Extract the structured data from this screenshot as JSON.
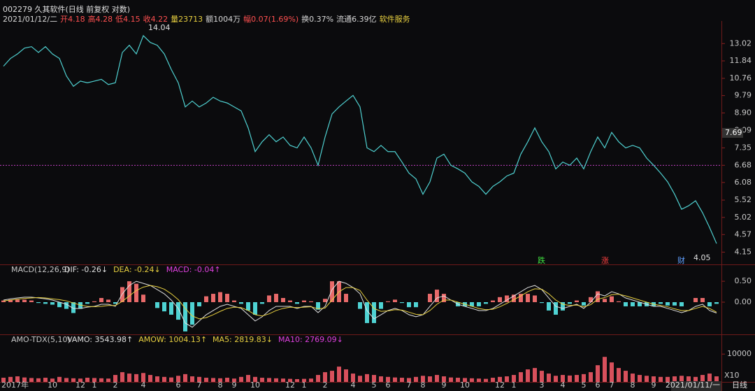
{
  "header": {
    "title": "002279 久其软件(日线 前复权 对数)",
    "period": "日线",
    "quote": [
      {
        "text": "2021/01/12/二",
        "color": "#d8d8d8"
      },
      {
        "text": "开4.18",
        "color": "#ff5050"
      },
      {
        "text": "高4.28",
        "color": "#ff5050"
      },
      {
        "text": "低4.15",
        "color": "#ff5050"
      },
      {
        "text": "收4.22",
        "color": "#ff5050"
      },
      {
        "text": "量23713",
        "color": "#e8d040"
      },
      {
        "text": "额1004万",
        "color": "#d8d8d8"
      },
      {
        "text": "幅0.07(1.69%)",
        "color": "#ff5050"
      },
      {
        "text": "换0.37%",
        "color": "#d8d8d8"
      },
      {
        "text": "流通6.39亿",
        "color": "#d8d8d8"
      },
      {
        "text": "软件服务",
        "color": "#e8d040"
      }
    ]
  },
  "chart_data": [
    {
      "type": "line",
      "log": true,
      "color": "#4fd0d0",
      "ylim": [
        3.91,
        14.4
      ],
      "yticks": [
        4.15,
        4.57,
        5.02,
        5.52,
        6.08,
        6.68,
        7.35,
        {
          "value": 8.09,
          "label": "8.09"
        },
        {
          "value": 8.9,
          "label": "8.90"
        },
        9.79,
        10.76,
        11.84,
        13.02
      ],
      "ref_line": 6.68,
      "ref_color": "#c040c0",
      "annotations": [
        "14.04",
        "4.05",
        "跌",
        "涨",
        "财",
        "7.69"
      ],
      "values": [
        11.5,
        12.0,
        12.3,
        12.7,
        12.8,
        12.4,
        12.8,
        12.3,
        12.0,
        10.9,
        10.3,
        10.6,
        10.5,
        10.6,
        10.7,
        10.4,
        10.5,
        12.4,
        12.9,
        12.3,
        13.6,
        13.1,
        12.9,
        12.3,
        11.3,
        10.5,
        9.2,
        9.5,
        9.2,
        9.4,
        9.7,
        9.5,
        9.4,
        9.2,
        9.0,
        8.2,
        7.2,
        7.6,
        7.9,
        7.6,
        7.8,
        7.45,
        7.35,
        7.8,
        7.35,
        6.68,
        7.8,
        8.85,
        9.2,
        9.5,
        9.8,
        9.2,
        7.35,
        7.2,
        7.45,
        7.2,
        7.2,
        6.8,
        6.4,
        6.2,
        5.7,
        6.1,
        6.95,
        7.1,
        6.68,
        6.55,
        6.4,
        6.1,
        5.95,
        5.7,
        5.95,
        6.1,
        6.3,
        6.4,
        7.1,
        7.6,
        8.2,
        7.6,
        7.2,
        6.55,
        6.8,
        6.68,
        6.95,
        6.55,
        7.2,
        7.8,
        7.35,
        8.0,
        7.6,
        7.35,
        7.45,
        7.35,
        6.95,
        6.68,
        6.4,
        6.1,
        5.7,
        5.25,
        5.35,
        5.5,
        5.15,
        4.75,
        4.35
      ]
    },
    {
      "type": "macd",
      "title": "MACD(12,26,9)",
      "ylim": [
        -0.77,
        0.87
      ],
      "yticks": [
        {
          "value": 0.5,
          "label": "0.50"
        },
        {
          "value": 0,
          "label": "0.00"
        }
      ],
      "series": [
        {
          "name": "DIF: -0.26↓",
          "kind": "line",
          "color": "#e0e0e0",
          "values": [
            0.05,
            0.08,
            0.1,
            0.12,
            0.12,
            0.1,
            0.08,
            0.05,
            0.0,
            -0.05,
            -0.15,
            -0.15,
            -0.12,
            -0.1,
            -0.05,
            -0.05,
            -0.1,
            0.2,
            0.4,
            0.5,
            0.45,
            0.4,
            0.3,
            0.2,
            0.05,
            -0.15,
            -0.5,
            -0.6,
            -0.45,
            -0.3,
            -0.2,
            -0.1,
            -0.05,
            -0.1,
            -0.15,
            -0.3,
            -0.45,
            -0.35,
            -0.2,
            -0.1,
            -0.1,
            -0.1,
            -0.15,
            -0.1,
            -0.1,
            -0.25,
            -0.1,
            0.3,
            0.5,
            0.45,
            0.35,
            0.2,
            -0.2,
            -0.4,
            -0.3,
            -0.2,
            -0.15,
            -0.2,
            -0.3,
            -0.35,
            -0.3,
            -0.1,
            0.1,
            0.15,
            0.05,
            -0.05,
            -0.1,
            -0.15,
            -0.2,
            -0.2,
            -0.15,
            -0.05,
            0.05,
            0.15,
            0.25,
            0.35,
            0.4,
            0.3,
            0.1,
            -0.1,
            -0.15,
            -0.1,
            -0.05,
            -0.15,
            0.0,
            0.2,
            0.15,
            0.25,
            0.2,
            0.1,
            0.05,
            0.0,
            -0.05,
            -0.1,
            -0.1,
            -0.15,
            -0.2,
            -0.25,
            -0.2,
            -0.1,
            -0.05,
            -0.2,
            -0.26
          ]
        },
        {
          "name": "DEA: -0.24↓",
          "kind": "line",
          "color": "#e8d040",
          "values": [
            0.03,
            0.05,
            0.07,
            0.09,
            0.1,
            0.11,
            0.1,
            0.08,
            0.06,
            0.03,
            -0.02,
            -0.07,
            -0.1,
            -0.11,
            -0.1,
            -0.08,
            -0.08,
            0.02,
            0.15,
            0.28,
            0.36,
            0.4,
            0.37,
            0.31,
            0.2,
            0.06,
            -0.15,
            -0.33,
            -0.4,
            -0.37,
            -0.3,
            -0.22,
            -0.15,
            -0.12,
            -0.13,
            -0.2,
            -0.3,
            -0.33,
            -0.28,
            -0.2,
            -0.15,
            -0.12,
            -0.13,
            -0.12,
            -0.11,
            -0.16,
            -0.14,
            0.05,
            0.25,
            0.35,
            0.35,
            0.28,
            0.05,
            -0.15,
            -0.22,
            -0.21,
            -0.18,
            -0.19,
            -0.24,
            -0.29,
            -0.3,
            -0.2,
            -0.05,
            0.05,
            0.05,
            0.0,
            -0.05,
            -0.1,
            -0.15,
            -0.18,
            -0.17,
            -0.11,
            -0.03,
            0.06,
            0.15,
            0.25,
            0.32,
            0.31,
            0.2,
            0.05,
            -0.05,
            -0.08,
            -0.07,
            -0.11,
            -0.06,
            0.07,
            0.11,
            0.18,
            0.19,
            0.15,
            0.1,
            0.05,
            0.0,
            -0.05,
            -0.08,
            -0.11,
            -0.16,
            -0.2,
            -0.2,
            -0.15,
            -0.1,
            -0.15,
            -0.24
          ]
        },
        {
          "name": "MACD: -0.04↑",
          "kind": "bar",
          "color": "#e040e0",
          "up_color": "#e86a6a",
          "down_color": "#4fd3d3",
          "values": [
            0.04,
            0.06,
            0.06,
            0.06,
            0.04,
            -0.02,
            -0.04,
            -0.06,
            -0.12,
            -0.16,
            -0.26,
            -0.16,
            -0.04,
            0.02,
            0.1,
            0.06,
            -0.04,
            0.36,
            0.5,
            0.44,
            0.18,
            0.0,
            -0.14,
            -0.22,
            -0.3,
            -0.42,
            -0.7,
            -0.54,
            -0.1,
            0.14,
            0.2,
            0.24,
            0.2,
            0.04,
            -0.04,
            -0.2,
            -0.3,
            -0.04,
            0.16,
            0.2,
            0.1,
            0.04,
            -0.04,
            0.04,
            0.02,
            -0.18,
            0.08,
            0.5,
            0.5,
            0.2,
            0.0,
            -0.16,
            -0.5,
            -0.5,
            -0.16,
            0.02,
            0.06,
            -0.02,
            -0.12,
            -0.12,
            0.0,
            0.2,
            0.3,
            0.2,
            0.0,
            -0.1,
            -0.1,
            -0.1,
            -0.1,
            -0.04,
            0.04,
            0.12,
            0.16,
            0.18,
            0.2,
            0.2,
            0.16,
            -0.02,
            -0.2,
            -0.3,
            -0.2,
            -0.04,
            0.04,
            -0.08,
            0.12,
            0.26,
            0.08,
            0.14,
            0.02,
            -0.1,
            -0.1,
            -0.1,
            -0.1,
            -0.1,
            -0.04,
            -0.08,
            -0.08,
            -0.1,
            0.0,
            0.1,
            0.1,
            -0.1,
            -0.04
          ]
        }
      ]
    },
    {
      "type": "bar",
      "title": "AMO-TDX(5,10)",
      "unit_label": "X10",
      "ylim": [
        0,
        16600
      ],
      "yticks": [
        10000
      ],
      "indicators": [
        {
          "name": "AMOW: 1004.13↑",
          "color": "#e8d040"
        },
        {
          "name": "MA5: 2819.83↓",
          "color": "#e8d040"
        },
        {
          "name": "MA10: 2769.09↓",
          "color": "#e040e0"
        }
      ],
      "series": [
        {
          "name": "VAMO: 3543.98↑",
          "color": "#d8505c",
          "values": [
            1500,
            1800,
            2000,
            1600,
            1400,
            1300,
            1500,
            1200,
            1800,
            1400,
            1300,
            1200,
            1500,
            1400,
            1300,
            1200,
            2500,
            3500,
            3000,
            2800,
            3200,
            2500,
            2000,
            1800,
            1600,
            2200,
            2800,
            2000,
            1800,
            1500,
            1400,
            1300,
            1500,
            1200,
            1800,
            2500,
            1800,
            1500,
            1400,
            1300,
            1200,
            1100,
            1000,
            1100,
            1200,
            2500,
            3500,
            4000,
            5500,
            4500,
            3000,
            2200,
            2800,
            2500,
            2000,
            1800,
            1600,
            1500,
            1400,
            1800,
            2200,
            2000,
            2500,
            2000,
            1600,
            1500,
            1400,
            1300,
            1200,
            1100,
            1500,
            1800,
            2000,
            2500,
            3500,
            4500,
            5000,
            4000,
            3000,
            2200,
            2500,
            2300,
            2500,
            2800,
            3500,
            6000,
            9000,
            7000,
            5000,
            4000,
            3000,
            2500,
            2200,
            2000,
            1800,
            1800,
            2000,
            2200,
            2000,
            1800,
            2500,
            3000,
            2000
          ]
        }
      ],
      "categories": [
        "2017年",
        null,
        null,
        null,
        null,
        null,
        null,
        "10",
        null,
        null,
        null,
        "12",
        null,
        "1",
        null,
        null,
        "2",
        null,
        null,
        null,
        "4",
        null,
        null,
        null,
        null,
        "6",
        null,
        null,
        "7",
        null,
        null,
        "8",
        null,
        "9",
        null,
        null,
        "10",
        null,
        null,
        null,
        null,
        "12",
        null,
        "1",
        null,
        null,
        "2",
        null,
        null,
        null,
        "4",
        null,
        null,
        "5",
        null,
        "6",
        null,
        null,
        "7",
        null,
        "8",
        null,
        null,
        "9",
        null,
        null,
        "10",
        null,
        null,
        null,
        null,
        "12",
        null,
        "1",
        null,
        null,
        null,
        "3",
        null,
        null,
        "4",
        null,
        null,
        "5",
        null,
        "6",
        null,
        "7",
        null,
        null,
        "8",
        null,
        null,
        "9",
        null,
        null,
        "10",
        null,
        null,
        "2021/01/11/一",
        null,
        null,
        null
      ]
    }
  ]
}
